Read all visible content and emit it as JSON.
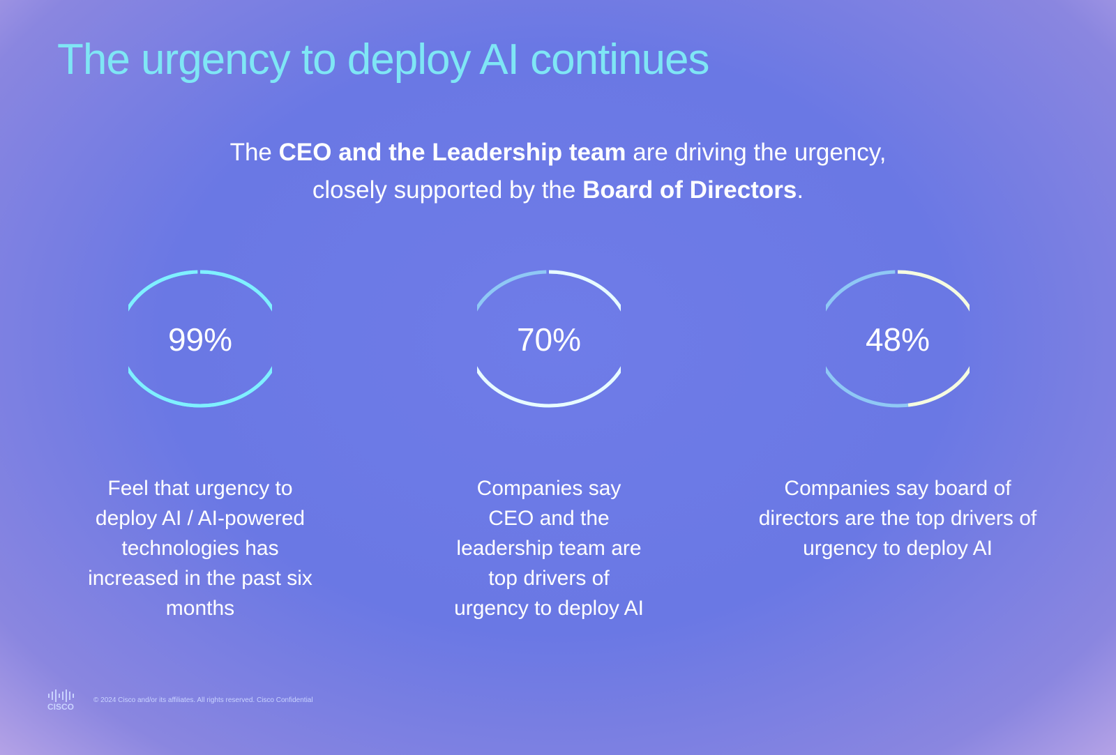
{
  "title": "The urgency to deploy AI continues",
  "subtitle": {
    "p1": "The ",
    "b1": "CEO and the Leadership team",
    "p2": " are driving the urgency,",
    "p3": "closely supported by the ",
    "b2": "Board of Directors",
    "p4": "."
  },
  "stats": [
    {
      "value": 99,
      "label": "99%",
      "desc": "Feel that urgency to deploy AI / AI-powered technologies has increased in the past six months",
      "arc_color": "#7ff0ff",
      "track_color": "#7ff0ff"
    },
    {
      "value": 70,
      "label": "70%",
      "desc": "Companies say CEO and the leadership team are top drivers of urgency to deploy AI",
      "arc_color": "#e8fbff",
      "track_color": "#8fc8f5"
    },
    {
      "value": 48,
      "label": "48%",
      "desc": "Companies say board of directors are the top drivers of urgency to deploy AI",
      "arc_color": "#f6fbe0",
      "track_color": "#8fc8f5"
    }
  ],
  "footer": {
    "logo": "CISCO",
    "copyright": "© 2024 Cisco and/or its affiliates. All rights reserved.   Cisco Confidential"
  }
}
